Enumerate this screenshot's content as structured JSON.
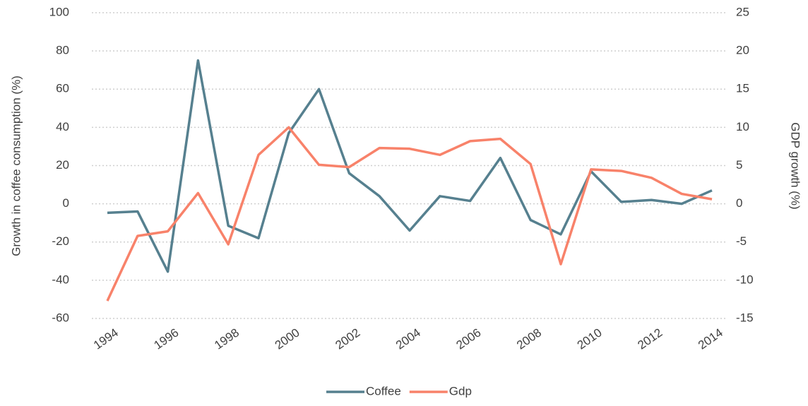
{
  "chart_data": {
    "type": "line",
    "x": [
      1994,
      1995,
      1996,
      1997,
      1998,
      1999,
      2000,
      2001,
      2002,
      2003,
      2004,
      2005,
      2006,
      2007,
      2008,
      2009,
      2010,
      2011,
      2012,
      2013,
      2014
    ],
    "xlim": [
      1994,
      2014
    ],
    "xticks": [
      1994,
      1996,
      1998,
      2000,
      2002,
      2004,
      2006,
      2008,
      2010,
      2012,
      2014
    ],
    "ylabel": "Growth in coffee consumption (%)",
    "y2label": "GDP growth (%)",
    "ylim": [
      -60,
      100
    ],
    "yticks": [
      -60,
      -40,
      -20,
      0,
      20,
      40,
      60,
      80,
      100
    ],
    "y2lim": [
      -15,
      25
    ],
    "y2ticks": [
      -15,
      -10,
      -5,
      0,
      5,
      10,
      15,
      20,
      25
    ],
    "grid": true,
    "legend": "bottom",
    "series": [
      {
        "name": "Coffee",
        "color": "#56808f",
        "values": [
          -4.7,
          -4,
          -35.5,
          75,
          -11.5,
          -18,
          37,
          60,
          16,
          4,
          -14,
          4,
          1.5,
          24,
          -8.5,
          -16,
          17,
          1,
          2,
          0,
          7
        ]
      },
      {
        "name": "Gdp",
        "color": "#f8826a",
        "axis": "y2",
        "values": [
          -12.7,
          -4.2,
          -3.6,
          1.4,
          -5.3,
          6.4,
          10,
          5.1,
          4.8,
          7.3,
          7.2,
          6.4,
          8.2,
          8.5,
          5.2,
          -7.9,
          4.5,
          4.3,
          3.4,
          1.3,
          0.6
        ]
      }
    ]
  }
}
